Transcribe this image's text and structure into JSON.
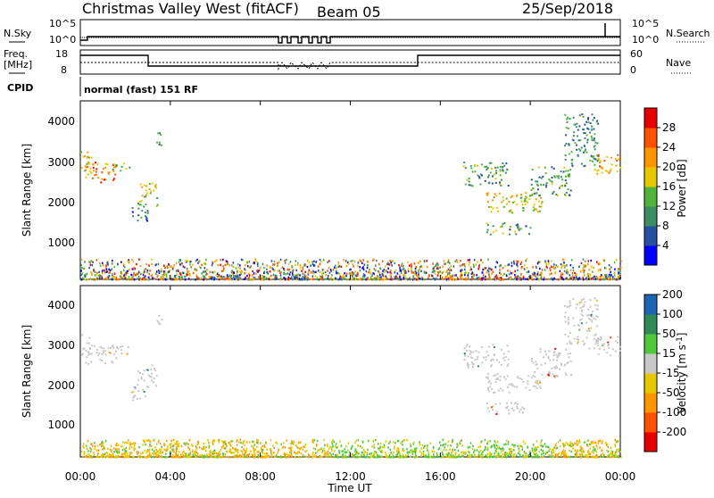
{
  "header": {
    "title": "Christmas Valley West (fitACF)",
    "beam": "Beam 05",
    "date": "25/Sep/2018"
  },
  "sky_panel": {
    "left_label": "N.Sky",
    "right_label": "N.Search",
    "left_ticks": [
      "10^5",
      "10^0"
    ],
    "right_ticks": [
      "10^5",
      "10^0"
    ]
  },
  "freq_panel": {
    "left_label_1": "Freq.",
    "left_label_2": "[MHz]",
    "right_label": "Nave",
    "left_ticks": [
      "18",
      "8"
    ],
    "right_ticks": [
      "60",
      "0"
    ]
  },
  "cpid": {
    "label": "CPID",
    "text": "normal (fast) 151 RF"
  },
  "x_axis": {
    "label": "Time UT",
    "ticks": [
      "00:00",
      "04:00",
      "08:00",
      "12:00",
      "16:00",
      "20:00",
      "00:00"
    ]
  },
  "colors": {
    "power": [
      "#0000ff",
      "#2850a0",
      "#3c8c64",
      "#50b43c",
      "#e6c800",
      "#ff9600",
      "#ff5000",
      "#e60000"
    ],
    "velocity": [
      "#e60000",
      "#ff5000",
      "#ff9600",
      "#e6c800",
      "#c8c8c8",
      "#50c83c",
      "#2e8b57",
      "#1e64b4"
    ],
    "ground_scatter": "#c8c8c8"
  },
  "chart_data": [
    {
      "type": "heatmap",
      "name": "power",
      "xlabel": "Time UT",
      "ylabel": "Slant Range [km]",
      "xlim": [
        0,
        24
      ],
      "ylim": [
        180,
        4600
      ],
      "yticks": [
        1000,
        2000,
        3000,
        4000
      ],
      "colorbar": {
        "label": "Power [dB]",
        "range": [
          0,
          32
        ],
        "ticks": [
          4,
          8,
          12,
          16,
          20,
          24,
          28
        ]
      },
      "regions": [
        {
          "t0": 0.0,
          "t1": 0.5,
          "r0": 2800,
          "r1": 3400,
          "value": 18
        },
        {
          "t0": 0.2,
          "t1": 1.6,
          "r0": 2600,
          "r1": 3100,
          "value": 24
        },
        {
          "t0": 1.4,
          "t1": 2.2,
          "r0": 2850,
          "r1": 3100,
          "value": 14
        },
        {
          "t0": 2.5,
          "t1": 3.4,
          "r0": 2000,
          "r1": 2600,
          "value": 16
        },
        {
          "t0": 2.2,
          "t1": 3.0,
          "r0": 1650,
          "r1": 2000,
          "value": 8
        },
        {
          "t0": 3.3,
          "t1": 3.6,
          "r0": 3500,
          "r1": 3900,
          "value": 12
        },
        {
          "t0": 17.0,
          "t1": 19.0,
          "r0": 2500,
          "r1": 3100,
          "value": 12
        },
        {
          "t0": 18.0,
          "t1": 20.5,
          "r0": 1850,
          "r1": 2350,
          "value": 18
        },
        {
          "t0": 20.0,
          "t1": 21.8,
          "r0": 2250,
          "r1": 3000,
          "value": 12
        },
        {
          "t0": 18.0,
          "t1": 20.0,
          "r0": 1300,
          "r1": 1600,
          "value": 12
        },
        {
          "t0": 21.5,
          "t1": 23.0,
          "r0": 3000,
          "r1": 4300,
          "value": 10
        },
        {
          "t0": 22.8,
          "t1": 24.0,
          "r0": 2800,
          "r1": 3300,
          "value": 22
        }
      ]
    },
    {
      "type": "heatmap",
      "name": "velocity",
      "xlabel": "Time UT",
      "ylabel": "Slant Range [km]",
      "xlim": [
        0,
        24
      ],
      "ylim": [
        180,
        4600
      ],
      "yticks": [
        1000,
        2000,
        3000,
        4000
      ],
      "colorbar": {
        "label": "Velocity [m s^-1]",
        "ticks": [
          200,
          100,
          50,
          15,
          -15,
          -50,
          -100,
          -200
        ]
      }
    }
  ]
}
